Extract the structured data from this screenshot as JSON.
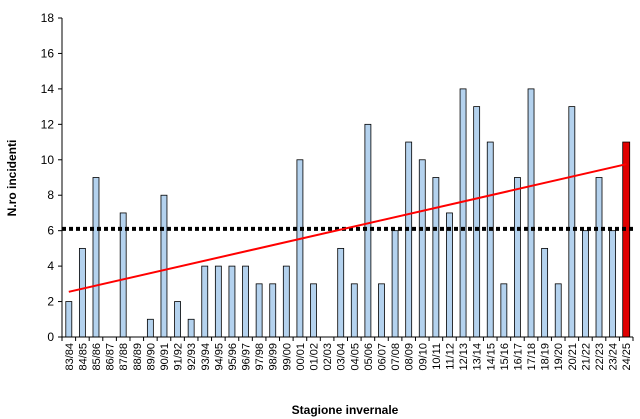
{
  "chart_data": {
    "type": "bar",
    "xlabel": "Stagione invernale",
    "ylabel": "N.ro incidenti",
    "ylim": [
      0,
      18
    ],
    "yticks": [
      0,
      2,
      4,
      6,
      8,
      10,
      12,
      14,
      16,
      18
    ],
    "categories": [
      "83/84",
      "84/85",
      "85/86",
      "86/87",
      "87/88",
      "88/89",
      "89/90",
      "90/91",
      "91/92",
      "92/93",
      "93/94",
      "94/95",
      "95/96",
      "96/97",
      "97/98",
      "98/99",
      "99/00",
      "00/01",
      "01/02",
      "02/03",
      "03/04",
      "04/05",
      "05/06",
      "06/07",
      "07/08",
      "08/09",
      "09/10",
      "10/11",
      "11/12",
      "12/13",
      "13/14",
      "14/15",
      "15/16",
      "16/17",
      "17/18",
      "18/19",
      "19/20",
      "20/21",
      "21/22",
      "22/23",
      "23/24",
      "24/25"
    ],
    "series": [
      {
        "values": [
          2,
          5,
          9,
          0,
          7,
          0,
          1,
          8,
          2,
          1,
          4,
          4,
          4,
          4,
          3,
          3,
          4,
          10,
          3,
          0,
          5,
          3,
          12,
          3,
          6,
          11,
          10,
          9,
          7,
          14,
          13,
          11,
          3,
          9,
          14,
          5,
          3,
          13,
          6,
          9,
          6,
          11
        ]
      }
    ],
    "highlight_category": "24/25",
    "reference_lines": [
      {
        "kind": "mean",
        "value": 6.1,
        "style": "dotted"
      }
    ],
    "trend_line": {
      "start_value": 2.55,
      "end_value": 9.75
    },
    "grid": false,
    "legend": "none",
    "colors": {
      "bar": "#b4d2ee",
      "bar_highlight": "#e00000",
      "bar_stroke": "#000000",
      "trend": "#ff0000",
      "mean_line": "#000000"
    }
  }
}
